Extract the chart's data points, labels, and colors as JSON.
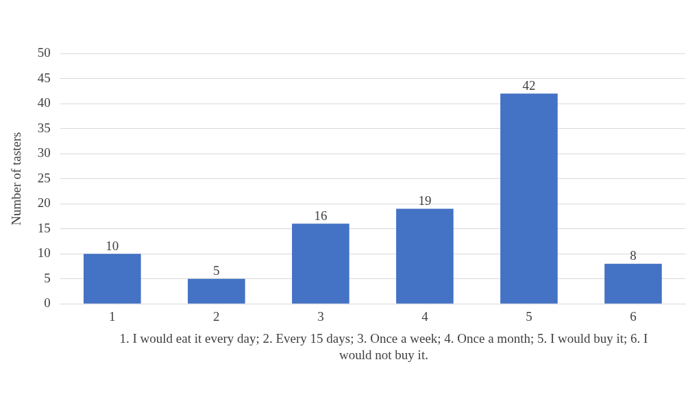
{
  "chart_data": {
    "type": "bar",
    "xlabel": "1. I would eat it every day; 2. Every 15 days; 3. Once a week; 4. Once a month; 5. I would buy it; 6. I would not buy it.",
    "ylabel": "Number of tasters",
    "categories": [
      "1",
      "2",
      "3",
      "4",
      "5",
      "6"
    ],
    "values": [
      10,
      5,
      16,
      19,
      42,
      8
    ],
    "color": "#4472c4",
    "ylim": [
      0,
      50
    ],
    "yticks": [
      0,
      5,
      10,
      15,
      20,
      25,
      30,
      35,
      40,
      45,
      50
    ],
    "grid": "y",
    "data_labels": true
  }
}
